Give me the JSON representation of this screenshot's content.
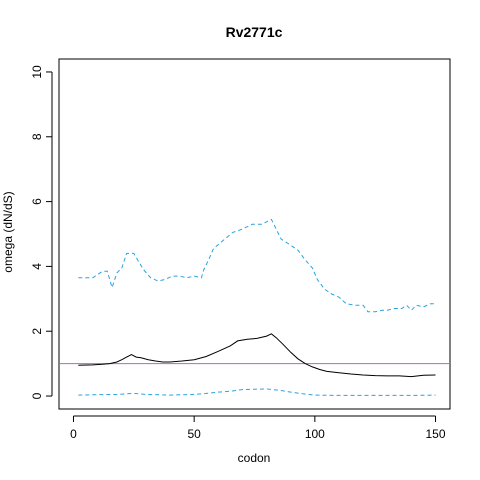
{
  "chart_data": {
    "type": "line",
    "title": "Rv2771c",
    "xlabel": "codon",
    "ylabel": "omega (dN/dS)",
    "xlim": [
      -6,
      156
    ],
    "ylim": [
      -0.4,
      10.4
    ],
    "x_ticks": [
      0,
      50,
      100,
      150
    ],
    "y_ticks": [
      0,
      2,
      4,
      6,
      8,
      10
    ],
    "reference_line": {
      "y": 1,
      "color": "#c060c0"
    },
    "grid": false,
    "legend": "none",
    "series": [
      {
        "style": "dashed",
        "color": "#29a3e0",
        "x": [
          2,
          8,
          12,
          14,
          15,
          16,
          18,
          20,
          22,
          25,
          27,
          29,
          32,
          35,
          38,
          41,
          44,
          47,
          50,
          53,
          54,
          56,
          58,
          62,
          66,
          70,
          74,
          78,
          82,
          84,
          86,
          88,
          90,
          93,
          96,
          99,
          101,
          104,
          107,
          110,
          113,
          117,
          120,
          122,
          125,
          128,
          130,
          133,
          136,
          138,
          140,
          142,
          145,
          148,
          150
        ],
        "y": [
          3.65,
          3.65,
          3.85,
          3.85,
          3.6,
          3.35,
          3.8,
          3.95,
          4.4,
          4.4,
          4.15,
          3.9,
          3.65,
          3.55,
          3.6,
          3.7,
          3.7,
          3.65,
          3.7,
          3.65,
          3.9,
          4.2,
          4.55,
          4.8,
          5.05,
          5.15,
          5.3,
          5.3,
          5.45,
          5.15,
          4.85,
          4.75,
          4.65,
          4.5,
          4.2,
          3.95,
          3.6,
          3.3,
          3.15,
          3.05,
          2.85,
          2.8,
          2.8,
          2.6,
          2.6,
          2.65,
          2.65,
          2.7,
          2.7,
          2.8,
          2.65,
          2.8,
          2.75,
          2.85,
          2.85
        ]
      },
      {
        "style": "solid",
        "color": "#000000",
        "x": [
          2,
          8,
          12,
          15,
          18,
          20,
          22,
          24,
          26,
          28,
          31,
          34,
          37,
          40,
          45,
          50,
          55,
          60,
          65,
          68,
          72,
          76,
          80,
          82,
          84,
          87,
          90,
          93,
          96,
          99,
          102,
          105,
          110,
          115,
          120,
          125,
          130,
          135,
          140,
          145,
          150
        ],
        "y": [
          0.95,
          0.96,
          0.98,
          1.0,
          1.05,
          1.12,
          1.2,
          1.28,
          1.2,
          1.18,
          1.12,
          1.08,
          1.05,
          1.05,
          1.08,
          1.12,
          1.22,
          1.38,
          1.55,
          1.7,
          1.75,
          1.78,
          1.85,
          1.92,
          1.8,
          1.58,
          1.35,
          1.15,
          1.0,
          0.9,
          0.82,
          0.76,
          0.72,
          0.68,
          0.65,
          0.63,
          0.62,
          0.62,
          0.6,
          0.64,
          0.65
        ]
      },
      {
        "style": "dashed",
        "color": "#29a3e0",
        "x": [
          2,
          10,
          18,
          25,
          30,
          40,
          50,
          55,
          60,
          65,
          70,
          80,
          85,
          90,
          95,
          100,
          110,
          120,
          130,
          140,
          150
        ],
        "y": [
          0.03,
          0.04,
          0.05,
          0.08,
          0.05,
          0.03,
          0.05,
          0.08,
          0.12,
          0.15,
          0.2,
          0.22,
          0.18,
          0.12,
          0.07,
          0.03,
          0.02,
          0.02,
          0.02,
          0.02,
          0.03
        ]
      }
    ]
  }
}
